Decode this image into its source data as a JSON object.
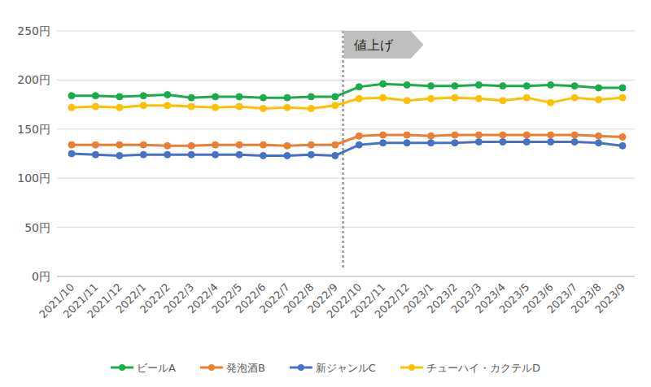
{
  "chart_data": {
    "type": "line",
    "categories": [
      "2021/10",
      "2021/11",
      "2021/12",
      "2022/1",
      "2022/2",
      "2022/3",
      "2022/4",
      "2022/5",
      "2022/6",
      "2022/7",
      "2022/8",
      "2022/9",
      "2022/10",
      "2022/11",
      "2022/12",
      "2023/1",
      "2023/2",
      "2023/3",
      "2023/4",
      "2023/5",
      "2023/6",
      "2023/7",
      "2023/8",
      "2023/9"
    ],
    "series": [
      {
        "name": "ビールA",
        "color": "#1aab4b",
        "marker": "circle",
        "values": [
          184,
          184,
          183,
          184,
          185,
          182,
          183,
          183,
          182,
          182,
          183,
          183,
          193,
          196,
          195,
          194,
          194,
          195,
          194,
          194,
          195,
          194,
          192,
          192
        ]
      },
      {
        "name": "発泡酒B",
        "color": "#ed7d31",
        "marker": "circle",
        "values": [
          134,
          134,
          134,
          134,
          133,
          133,
          134,
          134,
          134,
          133,
          134,
          134,
          143,
          144,
          144,
          143,
          144,
          144,
          144,
          144,
          144,
          144,
          143,
          142
        ]
      },
      {
        "name": "新ジャンルC",
        "color": "#4472c4",
        "marker": "circle",
        "values": [
          125,
          124,
          123,
          124,
          124,
          124,
          124,
          124,
          123,
          123,
          124,
          123,
          134,
          136,
          136,
          136,
          136,
          137,
          137,
          137,
          137,
          137,
          136,
          133
        ]
      },
      {
        "name": "チューハイ・カクテルD",
        "color": "#ffc000",
        "marker": "circle",
        "values": [
          172,
          173,
          172,
          174,
          174,
          173,
          172,
          173,
          171,
          172,
          171,
          174,
          181,
          182,
          179,
          181,
          182,
          181,
          179,
          182,
          177,
          182,
          180,
          182
        ]
      }
    ],
    "ylim": [
      0,
      250
    ],
    "yticks": [
      {
        "value": 0,
        "label": "0円"
      },
      {
        "value": 50,
        "label": "50円"
      },
      {
        "value": 100,
        "label": "100円"
      },
      {
        "value": 150,
        "label": "150円"
      },
      {
        "value": 200,
        "label": "200円"
      },
      {
        "value": 250,
        "label": "250円"
      }
    ],
    "grid": true,
    "legend": "bottom",
    "annotations": [
      {
        "text": "値上げ",
        "x": "2022/9"
      }
    ]
  }
}
